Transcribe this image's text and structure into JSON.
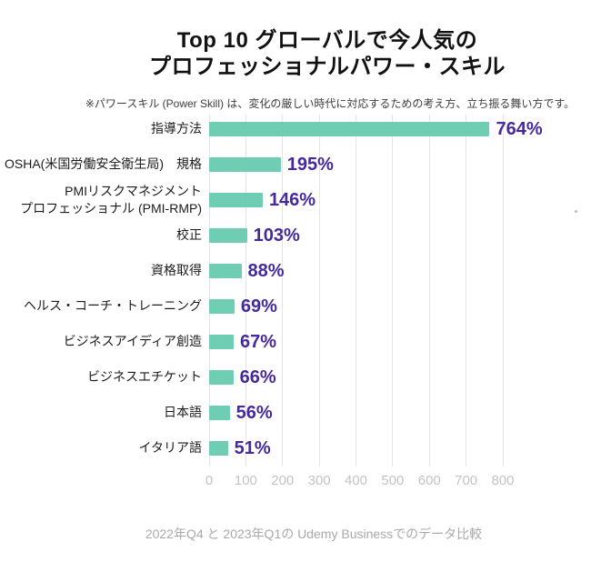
{
  "title": {
    "line1": "Top 10 グローバルで今人気の",
    "line2": "プロフェッショナルパワー・スキル"
  },
  "note": "※パワースキル (Power Skill) は、変化の厳しい時代に対応するための考え方、立ち振る舞い方です。",
  "footer": "2022年Q4 と 2023年Q1の Udemy Businessでのデータ比較",
  "chart_data": {
    "type": "bar",
    "orientation": "horizontal",
    "title": "Top 10 グローバルで今人気のプロフェッショナルパワー・スキル",
    "categories": [
      "指導方法",
      "OSHA(米国労働安全衛生局)　規格",
      "PMIリスクマネジメント\nプロフェッショナル (PMI-RMP)",
      "校正",
      "資格取得",
      "ヘルス・コーチ・トレーニング",
      "ビジネスアイディア創造",
      "ビジネスエチケット",
      "日本語",
      "イタリア語"
    ],
    "values": [
      764,
      195,
      146,
      103,
      88,
      69,
      67,
      66,
      56,
      51
    ],
    "value_labels": [
      "764%",
      "195%",
      "146%",
      "103%",
      "88%",
      "69%",
      "67%",
      "66%",
      "56%",
      "51%"
    ],
    "unit": "%",
    "xlim": [
      0,
      800
    ],
    "xticks": [
      0,
      100,
      200,
      300,
      400,
      500,
      600,
      700,
      800
    ],
    "grid": true,
    "legend": false,
    "colors": {
      "bar": "#6ecdb2",
      "value_label": "#46289f",
      "category_label": "#1b1b1b",
      "tick_label": "#c5c3c1",
      "grid_line": "#e6e6e6",
      "title": "#111111",
      "note": "#3d3d3d",
      "footer": "#a9a9a9",
      "background": "#ffffff"
    }
  }
}
